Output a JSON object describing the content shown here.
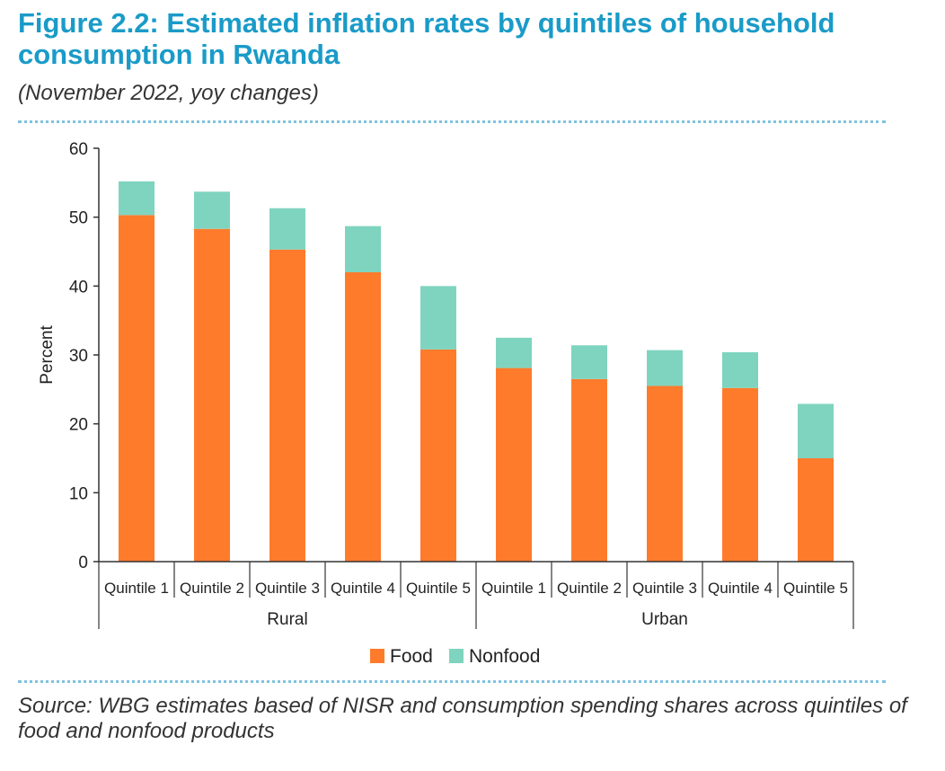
{
  "header": {
    "title": "Figure 2.2: Estimated inflation rates by quintiles of household consumption in Rwanda",
    "subtitle": "(November 2022, yoy changes)"
  },
  "footer": {
    "source": "Source: WBG estimates based of NISR and consumption spending shares across quintiles of food and nonfood products"
  },
  "colors": {
    "food": "#ff7b2c",
    "nonfood": "#7fd4bf",
    "title": "#1a9bc8",
    "axis": "#333333"
  },
  "chart_data": {
    "type": "bar",
    "stacked": true,
    "title": "Figure 2.2: Estimated inflation rates by quintiles of household consumption in Rwanda",
    "subtitle": "(November 2022, yoy changes)",
    "ylabel": "Percent",
    "xlabel": "",
    "ylim": [
      0,
      60
    ],
    "yticks": [
      0,
      10,
      20,
      30,
      40,
      50,
      60
    ],
    "grid": false,
    "legend": "bottom-center",
    "groups": [
      {
        "name": "Rural",
        "categories": [
          "Quintile 1",
          "Quintile 2",
          "Quintile 3",
          "Quintile 4",
          "Quintile 5"
        ]
      },
      {
        "name": "Urban",
        "categories": [
          "Quintile 1",
          "Quintile 2",
          "Quintile 3",
          "Quintile 4",
          "Quintile 5"
        ]
      }
    ],
    "categories": [
      "Quintile 1",
      "Quintile 2",
      "Quintile 3",
      "Quintile 4",
      "Quintile 5",
      "Quintile 1",
      "Quintile 2",
      "Quintile 3",
      "Quintile 4",
      "Quintile 5"
    ],
    "series": [
      {
        "name": "Food",
        "values": [
          50.3,
          48.3,
          45.3,
          42.0,
          30.8,
          28.1,
          26.5,
          25.5,
          25.2,
          15.0
        ]
      },
      {
        "name": "Nonfood",
        "values": [
          4.9,
          5.4,
          6.0,
          6.7,
          9.2,
          4.4,
          4.9,
          5.2,
          5.2,
          7.9
        ]
      }
    ]
  }
}
